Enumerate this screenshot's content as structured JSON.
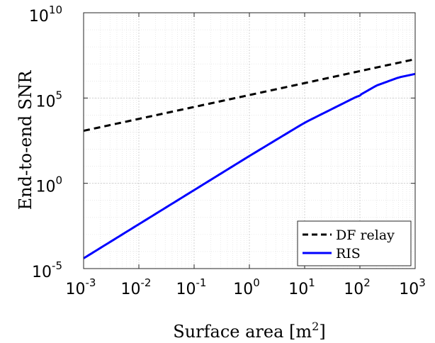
{
  "chart_data": {
    "type": "line",
    "xscale": "log",
    "yscale": "log",
    "xlim": [
      0.001,
      1000
    ],
    "ylim": [
      1e-05,
      10000000000
    ],
    "xticks": [
      {
        "value": 0.001,
        "base": "10",
        "exp": "-3"
      },
      {
        "value": 0.01,
        "base": "10",
        "exp": "-2"
      },
      {
        "value": 0.1,
        "base": "10",
        "exp": "-1"
      },
      {
        "value": 1,
        "base": "10",
        "exp": "0"
      },
      {
        "value": 10,
        "base": "10",
        "exp": "1"
      },
      {
        "value": 100,
        "base": "10",
        "exp": "2"
      },
      {
        "value": 1000,
        "base": "10",
        "exp": "3"
      }
    ],
    "yticks": [
      {
        "value": 1e-05,
        "base": "10",
        "exp": "-5"
      },
      {
        "value": 1,
        "base": "10",
        "exp": "0"
      },
      {
        "value": 100000,
        "base": "10",
        "exp": "5"
      },
      {
        "value": 10000000000,
        "base": "10",
        "exp": "10"
      }
    ],
    "xlabel": {
      "main": "Surface area [m",
      "sup": "2",
      "tail": "]"
    },
    "ylabel": "End-to-end SNR",
    "grid": true,
    "minor_grid": true,
    "legend_position": "bottom-right",
    "series": [
      {
        "name": "DF relay",
        "color": "#000000",
        "style": "dashed",
        "x": [
          0.001,
          0.01,
          0.1,
          1,
          10,
          100,
          1000
        ],
        "y": [
          1200,
          6000,
          30000,
          150000,
          750000,
          3800000,
          19000000
        ]
      },
      {
        "name": "RIS",
        "color": "#0000ff",
        "style": "solid",
        "x": [
          0.001,
          0.01,
          0.1,
          1,
          10,
          100,
          200,
          500,
          1000
        ],
        "y": [
          4e-05,
          0.004,
          0.4,
          40,
          3600,
          150000,
          540000,
          1600000,
          2600000
        ]
      }
    ]
  }
}
